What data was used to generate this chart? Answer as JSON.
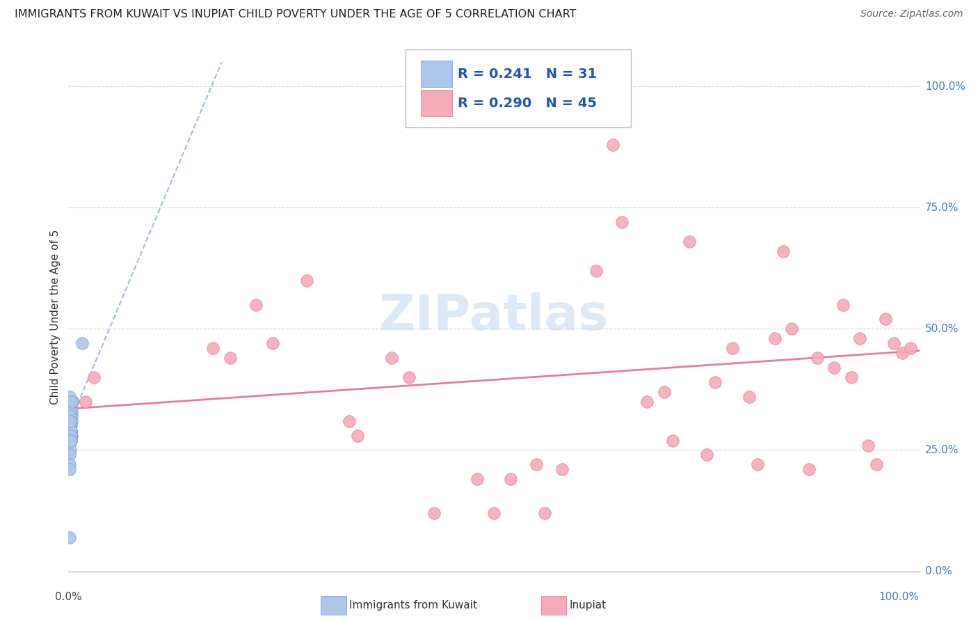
{
  "title": "IMMIGRANTS FROM KUWAIT VS INUPIAT CHILD POVERTY UNDER THE AGE OF 5 CORRELATION CHART",
  "source": "Source: ZipAtlas.com",
  "ylabel": "Child Poverty Under the Age of 5",
  "ytick_labels": [
    "0.0%",
    "25.0%",
    "50.0%",
    "75.0%",
    "100.0%"
  ],
  "ytick_values": [
    0.0,
    0.25,
    0.5,
    0.75,
    1.0
  ],
  "xlim": [
    0.0,
    1.0
  ],
  "ylim": [
    0.0,
    1.05
  ],
  "legend_label1": "Immigrants from Kuwait",
  "legend_label2": "Inupiat",
  "R1": "0.241",
  "N1": "31",
  "R2": "0.290",
  "N2": "45",
  "color_blue_fill": "#aec6ea",
  "color_blue_edge": "#6699cc",
  "color_pink_fill": "#f4aab8",
  "color_pink_edge": "#e07090",
  "color_blue_line": "#88aadd",
  "color_pink_line": "#e07090",
  "kuwait_x": [
    0.003,
    0.002,
    0.004,
    0.002,
    0.003,
    0.002,
    0.004,
    0.003,
    0.005,
    0.002,
    0.003,
    0.004,
    0.002,
    0.003,
    0.002,
    0.004,
    0.003,
    0.002,
    0.003,
    0.001,
    0.003,
    0.001,
    0.003,
    0.002,
    0.001,
    0.003,
    0.001,
    0.004,
    0.002,
    0.001,
    0.016
  ],
  "kuwait_y": [
    0.33,
    0.3,
    0.32,
    0.27,
    0.29,
    0.31,
    0.33,
    0.28,
    0.35,
    0.3,
    0.29,
    0.28,
    0.27,
    0.28,
    0.33,
    0.31,
    0.27,
    0.25,
    0.3,
    0.24,
    0.29,
    0.22,
    0.28,
    0.32,
    0.21,
    0.27,
    0.36,
    0.35,
    0.31,
    0.07,
    0.47
  ],
  "inupiat_x": [
    0.02,
    0.03,
    0.22,
    0.24,
    0.28,
    0.34,
    0.48,
    0.5,
    0.55,
    0.58,
    0.68,
    0.7,
    0.73,
    0.76,
    0.78,
    0.8,
    0.83,
    0.85,
    0.88,
    0.9,
    0.91,
    0.93,
    0.94,
    0.95,
    0.96,
    0.97,
    0.98,
    0.99,
    0.17,
    0.19,
    0.38,
    0.4,
    0.52,
    0.62,
    0.65,
    0.71,
    0.75,
    0.81,
    0.84,
    0.87,
    0.92,
    0.33,
    0.43,
    0.56,
    0.64
  ],
  "inupiat_y": [
    0.35,
    0.4,
    0.55,
    0.47,
    0.6,
    0.28,
    0.19,
    0.12,
    0.22,
    0.21,
    0.35,
    0.37,
    0.68,
    0.39,
    0.46,
    0.36,
    0.48,
    0.5,
    0.44,
    0.42,
    0.55,
    0.48,
    0.26,
    0.22,
    0.52,
    0.47,
    0.45,
    0.46,
    0.46,
    0.44,
    0.44,
    0.4,
    0.19,
    0.62,
    0.72,
    0.27,
    0.24,
    0.22,
    0.66,
    0.21,
    0.4,
    0.31,
    0.12,
    0.12,
    0.88
  ],
  "pink_trend_x0": 0.0,
  "pink_trend_y0": 0.335,
  "pink_trend_x1": 1.0,
  "pink_trend_y1": 0.455,
  "blue_trend_x0": 0.0,
  "blue_trend_y0": 0.3,
  "blue_trend_x1": 0.18,
  "blue_trend_y1": 1.05
}
